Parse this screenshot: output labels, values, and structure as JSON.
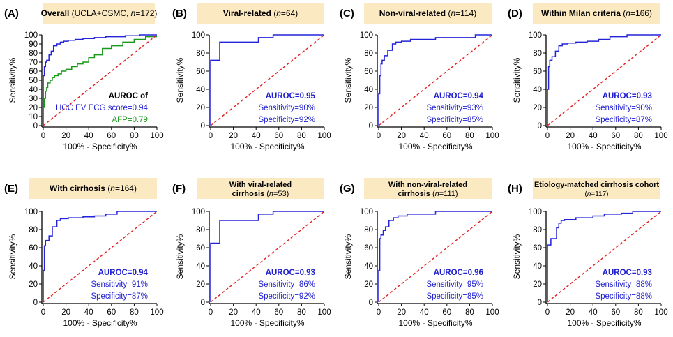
{
  "chart_data": [
    {
      "panel": "(A)",
      "type": "line",
      "title_bold": "Overall",
      "title_rest": " (UCLA+CSMC, ",
      "title_n": "n",
      "title_end": "=172)",
      "xlabel": "100% - Specificity%",
      "ylabel": "Sensitivity%",
      "xlim": [
        0,
        100
      ],
      "ylim": [
        0,
        100
      ],
      "xticks": [
        "0",
        "20",
        "40",
        "60",
        "80",
        "100"
      ],
      "yticks": [
        "0",
        "10",
        "20",
        "30",
        "40",
        "50",
        "60",
        "70",
        "80",
        "90",
        "100"
      ],
      "annotations": [
        {
          "text": "AUROC of",
          "color": "#000000",
          "bold": true
        },
        {
          "text": "HCC EV ECG score=0.94",
          "color": "#1f1fd0",
          "bold": false
        },
        {
          "text": "AFP=0.79",
          "color": "#1a9a1a",
          "bold": false
        }
      ],
      "series": [
        {
          "name": "HCC EV ECG score",
          "color": "#2323d8",
          "x": [
            0,
            0,
            1,
            1,
            2,
            2,
            3,
            3,
            5,
            5,
            7,
            7,
            9,
            9,
            12,
            12,
            15,
            15,
            18,
            18,
            22,
            22,
            28,
            28,
            35,
            35,
            45,
            45,
            55,
            55,
            62,
            62,
            72,
            72,
            85,
            85,
            100
          ],
          "y": [
            0,
            55,
            55,
            65,
            65,
            70,
            70,
            72,
            72,
            78,
            78,
            82,
            82,
            88,
            88,
            90,
            90,
            92,
            92,
            93,
            93,
            94,
            94,
            95,
            95,
            96,
            96,
            97,
            97,
            98,
            98,
            98,
            98,
            99,
            99,
            100,
            100
          ]
        },
        {
          "name": "AFP",
          "color": "#1a9a1a",
          "x": [
            0,
            0,
            1,
            1,
            2,
            2,
            3,
            3,
            4,
            4,
            6,
            6,
            8,
            8,
            10,
            10,
            13,
            13,
            16,
            16,
            20,
            20,
            25,
            25,
            30,
            30,
            35,
            35,
            40,
            40,
            45,
            45,
            52,
            52,
            60,
            60,
            70,
            70,
            80,
            80,
            90,
            90,
            100
          ],
          "y": [
            0,
            20,
            20,
            30,
            30,
            38,
            38,
            42,
            42,
            47,
            47,
            50,
            50,
            53,
            53,
            55,
            55,
            57,
            57,
            60,
            60,
            62,
            62,
            65,
            65,
            68,
            68,
            70,
            70,
            75,
            75,
            78,
            78,
            85,
            85,
            88,
            88,
            92,
            92,
            95,
            95,
            98,
            98
          ]
        },
        {
          "name": "reference",
          "color": "#e02020",
          "dashed": true,
          "x": [
            0,
            100
          ],
          "y": [
            0,
            100
          ]
        }
      ]
    },
    {
      "panel": "(B)",
      "type": "line",
      "title_bold": "Viral-related",
      "title_rest": " (",
      "title_n": "n",
      "title_end": "=64)",
      "xlabel": "100% - Specificity%",
      "ylabel": "Sensitivity%",
      "xlim": [
        0,
        100
      ],
      "ylim": [
        0,
        100
      ],
      "xticks": [
        "0",
        "20",
        "40",
        "60",
        "80",
        "100"
      ],
      "yticks": [
        "0",
        "20",
        "40",
        "60",
        "80",
        "100"
      ],
      "annotations": [
        {
          "text": "AUROC=0.95",
          "color": "#1f1fd0",
          "bold": true
        },
        {
          "text": "Sensitivity=90%",
          "color": "#1f1fd0",
          "bold": false
        },
        {
          "text": "Specificity=92%",
          "color": "#1f1fd0",
          "bold": false
        }
      ],
      "series": [
        {
          "name": "ROC",
          "color": "#2323d8",
          "x": [
            0,
            0,
            8,
            8,
            42,
            42,
            55,
            55,
            100
          ],
          "y": [
            0,
            72,
            72,
            92,
            92,
            97,
            97,
            100,
            100
          ]
        },
        {
          "name": "reference",
          "color": "#e02020",
          "dashed": true,
          "x": [
            0,
            100
          ],
          "y": [
            0,
            100
          ]
        }
      ]
    },
    {
      "panel": "(C)",
      "type": "line",
      "title_bold": "Non-viral-related",
      "title_rest": " (",
      "title_n": "n",
      "title_end": "=114)",
      "xlabel": "100% - Specificity%",
      "ylabel": "Sensitivity%",
      "xlim": [
        0,
        100
      ],
      "ylim": [
        0,
        100
      ],
      "xticks": [
        "0",
        "20",
        "40",
        "60",
        "80",
        "100"
      ],
      "yticks": [
        "0",
        "20",
        "40",
        "60",
        "80",
        "100"
      ],
      "annotations": [
        {
          "text": "AUROC=0.94",
          "color": "#1f1fd0",
          "bold": true
        },
        {
          "text": "Sensitivity=93%",
          "color": "#1f1fd0",
          "bold": false
        },
        {
          "text": "Specificity=85%",
          "color": "#1f1fd0",
          "bold": false
        }
      ],
      "series": [
        {
          "name": "ROC",
          "color": "#2323d8",
          "x": [
            0,
            0,
            1,
            1,
            2,
            2,
            3,
            3,
            5,
            5,
            8,
            8,
            12,
            12,
            15,
            15,
            20,
            20,
            28,
            28,
            50,
            50,
            85,
            85,
            100
          ],
          "y": [
            0,
            35,
            35,
            55,
            55,
            68,
            68,
            72,
            72,
            77,
            77,
            83,
            83,
            90,
            90,
            92,
            92,
            93,
            93,
            95,
            95,
            97,
            97,
            100,
            100
          ]
        },
        {
          "name": "reference",
          "color": "#e02020",
          "dashed": true,
          "x": [
            0,
            100
          ],
          "y": [
            0,
            100
          ]
        }
      ]
    },
    {
      "panel": "(D)",
      "type": "line",
      "title_bold": "Within Milan criteria",
      "title_rest": " (",
      "title_n": "n",
      "title_end": "=166)",
      "xlabel": "100% - Specificity%",
      "ylabel": "Sensitivity%",
      "xlim": [
        0,
        100
      ],
      "ylim": [
        0,
        100
      ],
      "xticks": [
        "0",
        "20",
        "40",
        "60",
        "80",
        "100"
      ],
      "yticks": [
        "0",
        "20",
        "40",
        "60",
        "80",
        "100"
      ],
      "annotations": [
        {
          "text": "AUROC=0.93",
          "color": "#1f1fd0",
          "bold": true
        },
        {
          "text": "Sensitivity=90%",
          "color": "#1f1fd0",
          "bold": false
        },
        {
          "text": "Specificity=87%",
          "color": "#1f1fd0",
          "bold": false
        }
      ],
      "series": [
        {
          "name": "ROC",
          "color": "#2323d8",
          "x": [
            0,
            0,
            1,
            1,
            2,
            2,
            4,
            4,
            7,
            7,
            10,
            10,
            13,
            13,
            18,
            18,
            25,
            25,
            35,
            35,
            45,
            45,
            55,
            55,
            70,
            70,
            100
          ],
          "y": [
            0,
            40,
            40,
            65,
            65,
            72,
            72,
            76,
            76,
            82,
            82,
            88,
            88,
            90,
            90,
            91,
            91,
            92,
            92,
            93,
            93,
            95,
            95,
            98,
            98,
            100,
            100
          ]
        },
        {
          "name": "reference",
          "color": "#e02020",
          "dashed": true,
          "x": [
            0,
            100
          ],
          "y": [
            0,
            100
          ]
        }
      ]
    },
    {
      "panel": "(E)",
      "type": "line",
      "title_bold": "With cirrhosis",
      "title_rest": " (",
      "title_n": "n",
      "title_end": "=164)",
      "xlabel": "100% - Specificity%",
      "ylabel": "Sensitivity%",
      "xlim": [
        0,
        100
      ],
      "ylim": [
        0,
        100
      ],
      "xticks": [
        "0",
        "20",
        "40",
        "60",
        "80",
        "100"
      ],
      "yticks": [
        "0",
        "20",
        "40",
        "60",
        "80",
        "100"
      ],
      "annotations": [
        {
          "text": "AUROC=0.94",
          "color": "#1f1fd0",
          "bold": true
        },
        {
          "text": "Sensitivity=91%",
          "color": "#1f1fd0",
          "bold": false
        },
        {
          "text": "Specificity=87%",
          "color": "#1f1fd0",
          "bold": false
        }
      ],
      "series": [
        {
          "name": "ROC",
          "color": "#2323d8",
          "x": [
            0,
            0,
            1,
            1,
            2,
            2,
            5,
            5,
            8,
            8,
            12,
            12,
            15,
            15,
            22,
            22,
            35,
            35,
            45,
            45,
            55,
            55,
            65,
            65,
            100
          ],
          "y": [
            0,
            35,
            35,
            62,
            62,
            68,
            68,
            73,
            73,
            83,
            83,
            90,
            90,
            92,
            92,
            93,
            93,
            94,
            94,
            95,
            95,
            97,
            97,
            100,
            100
          ]
        },
        {
          "name": "reference",
          "color": "#e02020",
          "dashed": true,
          "x": [
            0,
            100
          ],
          "y": [
            0,
            100
          ]
        }
      ]
    },
    {
      "panel": "(F)",
      "type": "line",
      "title_bold": "With viral-related",
      "title_line2_bold": "cirrhosis",
      "title_rest": " (",
      "title_n": "n",
      "title_end": "=53)",
      "xlabel": "100% - Specificity%",
      "ylabel": "Sensitivity%",
      "xlim": [
        0,
        100
      ],
      "ylim": [
        0,
        100
      ],
      "xticks": [
        "0",
        "20",
        "40",
        "60",
        "80",
        "100"
      ],
      "yticks": [
        "0",
        "20",
        "40",
        "60",
        "80",
        "100"
      ],
      "annotations": [
        {
          "text": "AUROC=0.93",
          "color": "#1f1fd0",
          "bold": true
        },
        {
          "text": "Sensitivity=86%",
          "color": "#1f1fd0",
          "bold": false
        },
        {
          "text": "Specificity=92%",
          "color": "#1f1fd0",
          "bold": false
        }
      ],
      "series": [
        {
          "name": "ROC",
          "color": "#2323d8",
          "x": [
            0,
            0,
            8,
            8,
            42,
            42,
            55,
            55,
            100
          ],
          "y": [
            0,
            65,
            65,
            90,
            90,
            97,
            97,
            100,
            100
          ]
        },
        {
          "name": "reference",
          "color": "#e02020",
          "dashed": true,
          "x": [
            0,
            100
          ],
          "y": [
            0,
            100
          ]
        }
      ]
    },
    {
      "panel": "(G)",
      "type": "line",
      "title_bold": "With non-viral-related",
      "title_line2_bold": "cirrhosis",
      "title_rest": " (",
      "title_n": "n",
      "title_end": "=111)",
      "xlabel": "100% - Specificity%",
      "ylabel": "Sensitivity%",
      "xlim": [
        0,
        100
      ],
      "ylim": [
        0,
        100
      ],
      "xticks": [
        "0",
        "20",
        "40",
        "60",
        "80",
        "100"
      ],
      "yticks": [
        "0",
        "20",
        "40",
        "60",
        "80",
        "100"
      ],
      "annotations": [
        {
          "text": "AUROC=0.96",
          "color": "#1f1fd0",
          "bold": true
        },
        {
          "text": "Sensitivity=95%",
          "color": "#1f1fd0",
          "bold": false
        },
        {
          "text": "Specificity=85%",
          "color": "#1f1fd0",
          "bold": false
        }
      ],
      "series": [
        {
          "name": "ROC",
          "color": "#2323d8",
          "x": [
            0,
            0,
            1,
            1,
            2,
            2,
            4,
            4,
            6,
            6,
            9,
            9,
            13,
            13,
            17,
            17,
            25,
            25,
            50,
            50,
            100
          ],
          "y": [
            0,
            35,
            35,
            70,
            70,
            74,
            74,
            79,
            79,
            83,
            83,
            90,
            90,
            93,
            93,
            95,
            95,
            97,
            97,
            100,
            100
          ]
        },
        {
          "name": "reference",
          "color": "#e02020",
          "dashed": true,
          "x": [
            0,
            100
          ],
          "y": [
            0,
            100
          ]
        }
      ]
    },
    {
      "panel": "(H)",
      "type": "line",
      "title_bold": "Etiology-matched cirrhosis cohort",
      "title_line2_rest": "(",
      "title_n": "n",
      "title_end": "=117)",
      "xlabel": "100% - Specificity%",
      "ylabel": "Sensitivity%",
      "xlim": [
        0,
        100
      ],
      "ylim": [
        0,
        100
      ],
      "xticks": [
        "0",
        "20",
        "40",
        "60",
        "80",
        "100"
      ],
      "yticks": [
        "0",
        "20",
        "40",
        "60",
        "80",
        "100"
      ],
      "annotations": [
        {
          "text": "AUROC=0.93",
          "color": "#1f1fd0",
          "bold": true
        },
        {
          "text": "Sensitivity=88%",
          "color": "#1f1fd0",
          "bold": false
        },
        {
          "text": "Specificity=88%",
          "color": "#1f1fd0",
          "bold": false
        }
      ],
      "series": [
        {
          "name": "ROC",
          "color": "#2323d8",
          "x": [
            0,
            0,
            3,
            3,
            8,
            8,
            10,
            10,
            12,
            12,
            15,
            15,
            25,
            25,
            40,
            40,
            50,
            50,
            65,
            65,
            75,
            75,
            100
          ],
          "y": [
            0,
            63,
            63,
            70,
            70,
            82,
            82,
            87,
            87,
            90,
            90,
            91,
            91,
            93,
            93,
            95,
            95,
            97,
            97,
            98,
            98,
            100,
            100
          ]
        },
        {
          "name": "reference",
          "color": "#e02020",
          "dashed": true,
          "x": [
            0,
            100
          ],
          "y": [
            0,
            100
          ]
        }
      ]
    }
  ],
  "colors": {
    "title_box_fill": "#fbe9c2",
    "axis": "#000000"
  }
}
